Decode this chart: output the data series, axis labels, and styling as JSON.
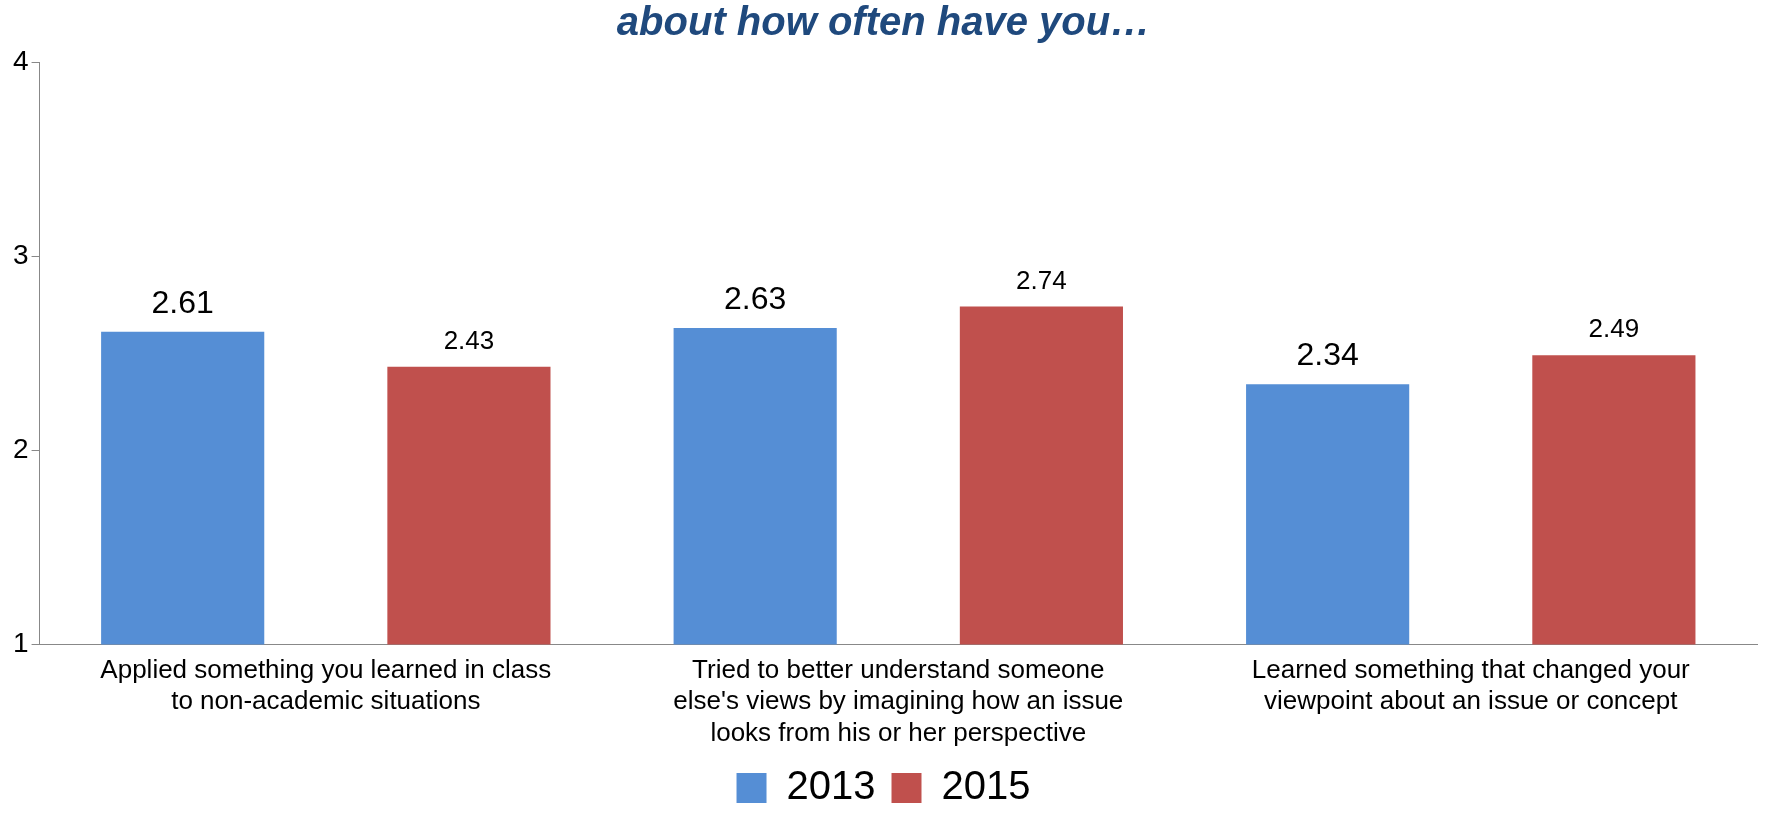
{
  "chart_data": {
    "type": "bar",
    "title": "about how often have you…",
    "categories": [
      "Applied something you learned in class to non-academic situations",
      "Tried to better understand someone else's views by imagining how an issue looks from his or her perspective",
      "Learned something that changed your viewpoint about an issue or concept"
    ],
    "series": [
      {
        "name": "2013",
        "color": "#558ed5",
        "values": [
          2.61,
          2.63,
          2.34
        ]
      },
      {
        "name": "2015",
        "color": "#c0504d",
        "values": [
          2.43,
          2.74,
          2.49
        ]
      }
    ],
    "ylim": [
      1,
      4
    ],
    "yticks": [
      1,
      2,
      3,
      4
    ],
    "grid": false,
    "legend": "bottom",
    "data_labels": true
  }
}
